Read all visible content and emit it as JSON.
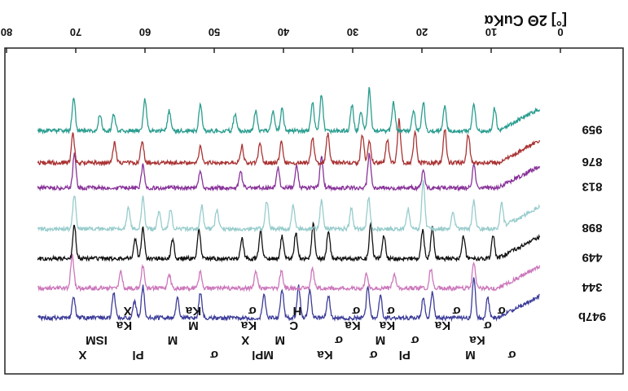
{
  "chart_data": {
    "type": "line",
    "title": "",
    "xlabel": "[°] 2Θ CuKα",
    "ylabel": "",
    "xlim": [
      0,
      80
    ],
    "xticks": [
      0,
      10,
      20,
      30,
      40,
      50,
      60,
      70,
      80
    ],
    "orientation": "rotated-180",
    "grid": false,
    "legend": "right",
    "series": [
      {
        "name": "947b",
        "color": "#3c3c99",
        "baseline": 0.94,
        "peaks": [
          [
            10.5,
            0.35
          ],
          [
            12.5,
            0.7
          ],
          [
            18.5,
            0.45
          ],
          [
            19.8,
            0.35
          ],
          [
            26,
            0.4
          ],
          [
            27.8,
            0.55
          ],
          [
            33.5,
            0.4
          ],
          [
            36.2,
            0.5
          ],
          [
            37.8,
            0.55
          ],
          [
            40.2,
            0.5
          ],
          [
            42.8,
            0.4
          ],
          [
            52,
            0.45
          ],
          [
            55.3,
            0.35
          ],
          [
            60.3,
            0.55
          ],
          [
            61.5,
            0.3
          ],
          [
            64.5,
            0.45
          ],
          [
            70.3,
            0.35
          ]
        ]
      },
      {
        "name": "344",
        "color": "#cc77bb",
        "baseline": 0.81,
        "peaks": [
          [
            12.5,
            0.45
          ],
          [
            18.7,
            0.35
          ],
          [
            24,
            0.25
          ],
          [
            28,
            0.25
          ],
          [
            35.8,
            0.35
          ],
          [
            40.3,
            0.3
          ],
          [
            44,
            0.3
          ],
          [
            52,
            0.3
          ],
          [
            56.5,
            0.25
          ],
          [
            60.3,
            0.4
          ],
          [
            63.5,
            0.3
          ],
          [
            70.5,
            0.6
          ]
        ]
      },
      {
        "name": "449",
        "color": "#111111",
        "baseline": 0.68,
        "peaks": [
          [
            9.7,
            0.4
          ],
          [
            14,
            0.4
          ],
          [
            18.5,
            0.55
          ],
          [
            19.9,
            0.5
          ],
          [
            25.5,
            0.4
          ],
          [
            27.4,
            0.6
          ],
          [
            33.5,
            0.5
          ],
          [
            35.7,
            0.6
          ],
          [
            38.2,
            0.45
          ],
          [
            40.2,
            0.4
          ],
          [
            43.3,
            0.5
          ],
          [
            46,
            0.35
          ],
          [
            52.2,
            0.5
          ],
          [
            56,
            0.35
          ],
          [
            60.3,
            0.55
          ],
          [
            61.4,
            0.35
          ],
          [
            70.2,
            0.6
          ]
        ]
      },
      {
        "name": "898",
        "color": "#99cccc",
        "baseline": 0.55,
        "peaks": [
          [
            8.5,
            0.45
          ],
          [
            12.5,
            0.5
          ],
          [
            15.5,
            0.3
          ],
          [
            19.8,
            0.85
          ],
          [
            22,
            0.35
          ],
          [
            27.7,
            0.55
          ],
          [
            30.2,
            0.35
          ],
          [
            34.5,
            0.5
          ],
          [
            38.6,
            0.4
          ],
          [
            42.4,
            0.5
          ],
          [
            49.6,
            0.35
          ],
          [
            51.8,
            0.4
          ],
          [
            56.3,
            0.35
          ],
          [
            58,
            0.3
          ],
          [
            60.3,
            0.55
          ],
          [
            62.4,
            0.4
          ],
          [
            70.2,
            0.6
          ]
        ]
      },
      {
        "name": "813",
        "color": "#883399",
        "baseline": 0.37,
        "peaks": [
          [
            12.5,
            0.4
          ],
          [
            19.8,
            0.3
          ],
          [
            27.6,
            0.6
          ],
          [
            34.5,
            0.55
          ],
          [
            38.1,
            0.4
          ],
          [
            40.8,
            0.35
          ],
          [
            46.2,
            0.3
          ],
          [
            52,
            0.3
          ],
          [
            60.3,
            0.4
          ],
          [
            70.2,
            0.6
          ]
        ]
      },
      {
        "name": "876",
        "color": "#aa3333",
        "baseline": 0.26,
        "peaks": [
          [
            13.3,
            0.5
          ],
          [
            16.7,
            0.6
          ],
          [
            21,
            0.55
          ],
          [
            23.3,
            0.75
          ],
          [
            25,
            0.4
          ],
          [
            27.6,
            0.4
          ],
          [
            28.6,
            0.5
          ],
          [
            33.6,
            0.5
          ],
          [
            35.8,
            0.45
          ],
          [
            40.3,
            0.4
          ],
          [
            43.4,
            0.35
          ],
          [
            46,
            0.3
          ],
          [
            52,
            0.3
          ],
          [
            60.4,
            0.4
          ],
          [
            64.4,
            0.35
          ],
          [
            70.4,
            0.5
          ]
        ]
      },
      {
        "name": "959",
        "color": "#2a9d8f",
        "baseline": 0.12,
        "peaks": [
          [
            9.5,
            0.4
          ],
          [
            12.5,
            0.45
          ],
          [
            16.7,
            0.45
          ],
          [
            19.8,
            0.5
          ],
          [
            21.2,
            0.35
          ],
          [
            24.1,
            0.5
          ],
          [
            27.6,
            0.75
          ],
          [
            28.8,
            0.35
          ],
          [
            30.1,
            0.45
          ],
          [
            34.5,
            0.65
          ],
          [
            35.8,
            0.5
          ],
          [
            40.2,
            0.4
          ],
          [
            41.5,
            0.35
          ],
          [
            44,
            0.35
          ],
          [
            47,
            0.3
          ],
          [
            52,
            0.45
          ],
          [
            56.5,
            0.35
          ],
          [
            60,
            0.55
          ],
          [
            64.5,
            0.3
          ],
          [
            66.5,
            0.3
          ],
          [
            70.3,
            0.6
          ]
        ]
      }
    ],
    "annotations": [
      {
        "text": "X",
        "x": 69
      },
      {
        "text": "ISM",
        "x": 67
      },
      {
        "text": "Ka",
        "x": 63
      },
      {
        "text": "X",
        "x": 62.5
      },
      {
        "text": "Pl",
        "x": 61
      },
      {
        "text": "M",
        "x": 56
      },
      {
        "text": "M",
        "x": 53
      },
      {
        "text": "Ka",
        "x": 53
      },
      {
        "text": "σ",
        "x": 50
      },
      {
        "text": "X",
        "x": 45.5
      },
      {
        "text": "Ka",
        "x": 45
      },
      {
        "text": "σ",
        "x": 44.5
      },
      {
        "text": "MPl",
        "x": 43
      },
      {
        "text": "M",
        "x": 40.5
      },
      {
        "text": "C",
        "x": 38.5
      },
      {
        "text": "H",
        "x": 38
      },
      {
        "text": "Ka",
        "x": 34
      },
      {
        "text": "σ",
        "x": 32
      },
      {
        "text": "Ka",
        "x": 30
      },
      {
        "text": "σ",
        "x": 29.5
      },
      {
        "text": "σ",
        "x": 27
      },
      {
        "text": "M",
        "x": 26
      },
      {
        "text": "Ka",
        "x": 25
      },
      {
        "text": "σ",
        "x": 24.5
      },
      {
        "text": "Pl",
        "x": 22.5
      },
      {
        "text": "σ",
        "x": 21
      },
      {
        "text": "Ka",
        "x": 17
      },
      {
        "text": "σ",
        "x": 15
      },
      {
        "text": "M",
        "x": 13
      },
      {
        "text": "Ka",
        "x": 12
      },
      {
        "text": "σ",
        "x": 10.5
      },
      {
        "text": "σ",
        "x": 8.5
      },
      {
        "text": "σ",
        "x": 7
      }
    ],
    "colors": {
      "axis": "#222222",
      "label": "#111111"
    }
  }
}
